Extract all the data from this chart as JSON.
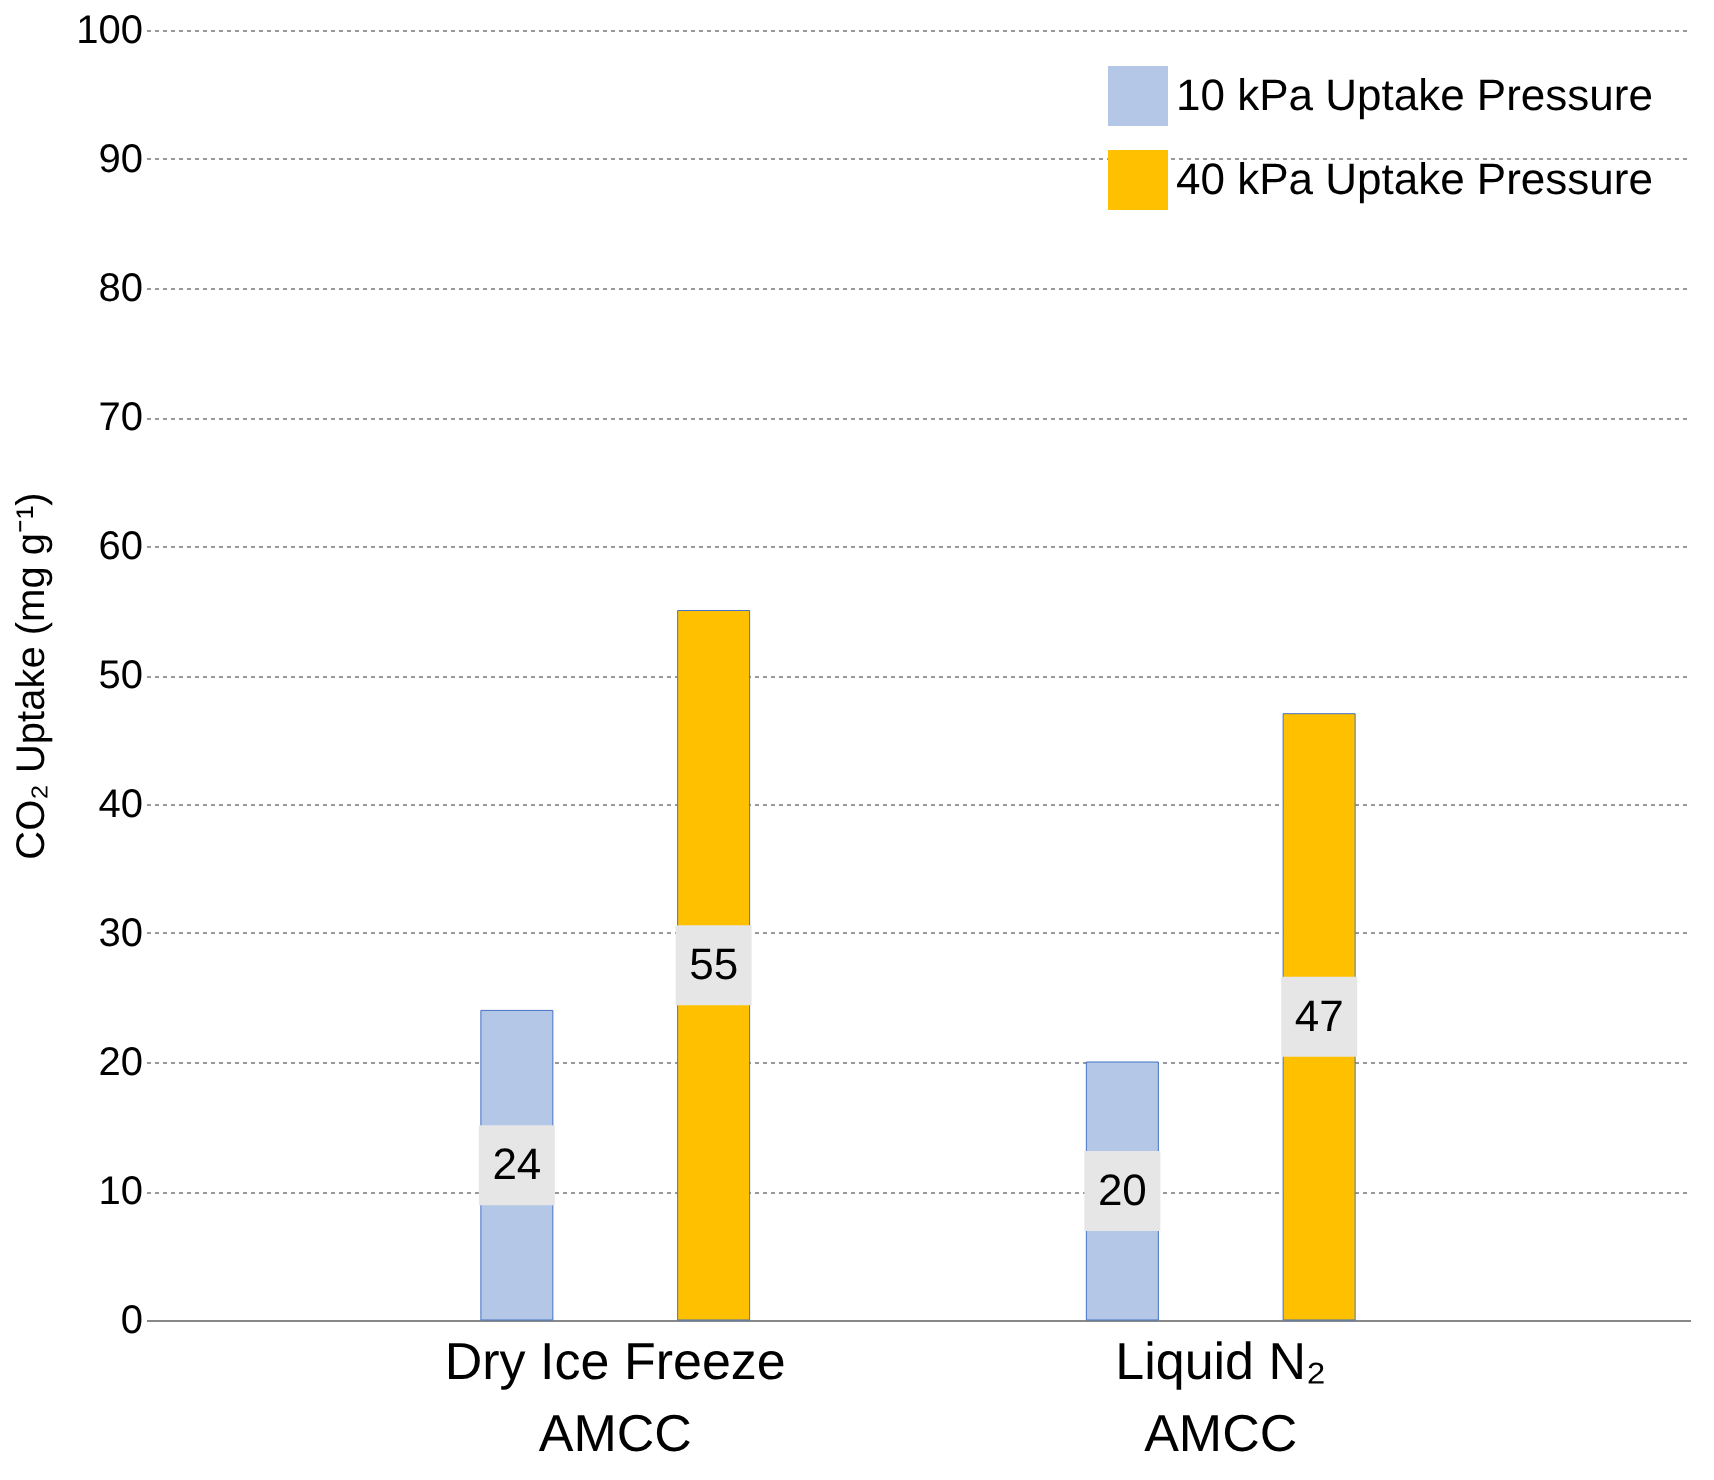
{
  "chart_data": {
    "type": "bar",
    "categories": [
      "Dry Ice Freeze\nAMCC",
      "Liquid N₂\nAMCC"
    ],
    "ylabel": "CO₂ Uptake (mg g⁻¹)",
    "series": [
      {
        "name": "10 kPa Uptake Pressure",
        "color": "#b4c7e7",
        "values": [
          24,
          20
        ]
      },
      {
        "name": "40 kPa Uptake Pressure",
        "color": "#ffc000",
        "values": [
          55,
          47
        ]
      }
    ],
    "ylim": [
      0,
      100
    ],
    "yticks": [
      0,
      10,
      20,
      30,
      40,
      50,
      60,
      70,
      80,
      90,
      100
    ],
    "grid": "y",
    "legend": "top right",
    "data_labels": true
  }
}
